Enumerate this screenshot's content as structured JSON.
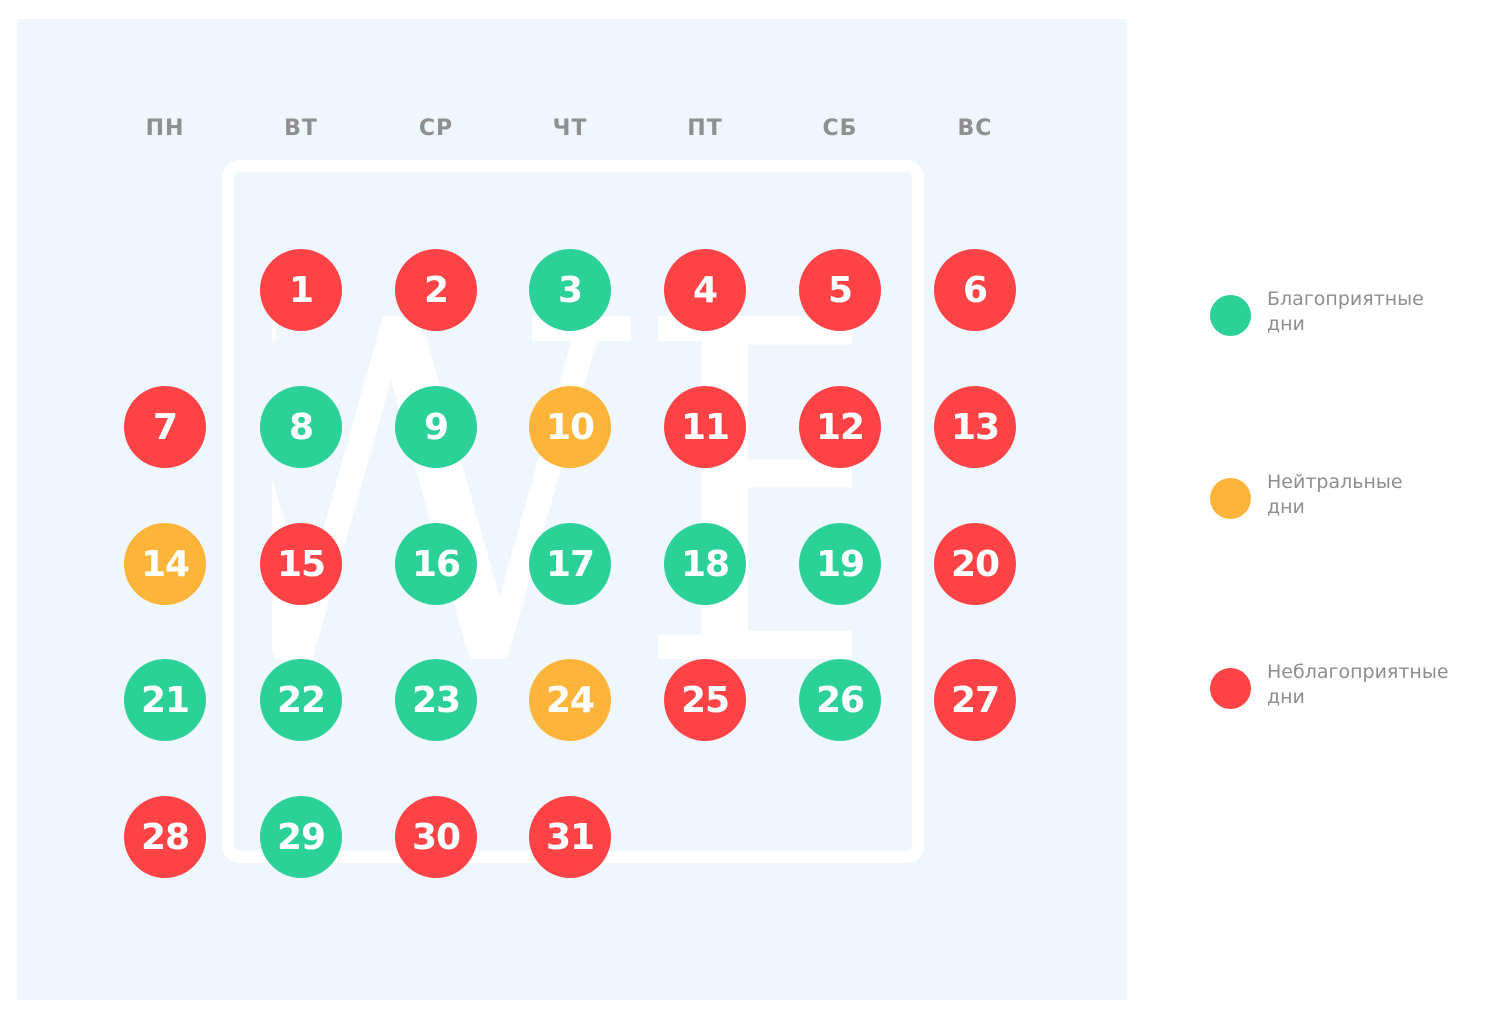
{
  "colors": {
    "favorable": "#2bd197",
    "neutral": "#fcb43a",
    "unfavorable": "#fe4346",
    "panel_background": "#eff6fd",
    "weekday_text": "#8f8f8f",
    "legend_text": "#8e8e8e"
  },
  "watermark": {
    "logo_text": "WE",
    "icon": "wf-logo-watermark"
  },
  "weekdays": [
    "ПН",
    "ВТ",
    "СР",
    "ЧТ",
    "ПТ",
    "СБ",
    "ВС"
  ],
  "days": [
    {
      "day": "1",
      "status": "unfavorable"
    },
    {
      "day": "2",
      "status": "unfavorable"
    },
    {
      "day": "3",
      "status": "favorable"
    },
    {
      "day": "4",
      "status": "unfavorable"
    },
    {
      "day": "5",
      "status": "unfavorable"
    },
    {
      "day": "6",
      "status": "unfavorable"
    },
    {
      "day": "7",
      "status": "unfavorable"
    },
    {
      "day": "8",
      "status": "favorable"
    },
    {
      "day": "9",
      "status": "favorable"
    },
    {
      "day": "10",
      "status": "neutral"
    },
    {
      "day": "11",
      "status": "unfavorable"
    },
    {
      "day": "12",
      "status": "unfavorable"
    },
    {
      "day": "13",
      "status": "unfavorable"
    },
    {
      "day": "14",
      "status": "neutral"
    },
    {
      "day": "15",
      "status": "unfavorable"
    },
    {
      "day": "16",
      "status": "favorable"
    },
    {
      "day": "17",
      "status": "favorable"
    },
    {
      "day": "18",
      "status": "favorable"
    },
    {
      "day": "19",
      "status": "favorable"
    },
    {
      "day": "20",
      "status": "unfavorable"
    },
    {
      "day": "21",
      "status": "favorable"
    },
    {
      "day": "22",
      "status": "favorable"
    },
    {
      "day": "23",
      "status": "favorable"
    },
    {
      "day": "24",
      "status": "neutral"
    },
    {
      "day": "25",
      "status": "unfavorable"
    },
    {
      "day": "26",
      "status": "favorable"
    },
    {
      "day": "27",
      "status": "unfavorable"
    },
    {
      "day": "28",
      "status": "unfavorable"
    },
    {
      "day": "29",
      "status": "favorable"
    },
    {
      "day": "30",
      "status": "unfavorable"
    },
    {
      "day": "31",
      "status": "unfavorable"
    }
  ],
  "legend": [
    {
      "status": "favorable",
      "label_line1": "Благоприятные",
      "label_line2": "дни"
    },
    {
      "status": "neutral",
      "label_line1": "Нейтральные",
      "label_line2": "дни"
    },
    {
      "status": "unfavorable",
      "label_line1": "Неблагоприятные",
      "label_line2": "дни"
    }
  ]
}
